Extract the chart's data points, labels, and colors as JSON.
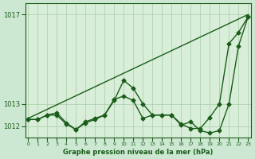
{
  "bg_color": "#cde8d2",
  "plot_bg_color": "#d8eed8",
  "line_color": "#1a5c1a",
  "grid_color": "#a8cca8",
  "xlabel": "Graphe pression niveau de la mer (hPa)",
  "ylim": [
    1011.5,
    1017.5
  ],
  "xlim": [
    -0.3,
    23.3
  ],
  "yticks": [
    1012,
    1013,
    1017
  ],
  "xticks": [
    0,
    1,
    2,
    3,
    4,
    5,
    6,
    7,
    8,
    9,
    10,
    11,
    12,
    13,
    14,
    15,
    16,
    17,
    18,
    19,
    20,
    21,
    22,
    23
  ],
  "series1_x": [
    0,
    1,
    2,
    3,
    4,
    5,
    6,
    7,
    8,
    9,
    10,
    11,
    12,
    13,
    14,
    15,
    16,
    17,
    18,
    19,
    20,
    21,
    22,
    23
  ],
  "series1_y": [
    1012.3,
    1012.3,
    1012.5,
    1012.5,
    1012.1,
    1011.85,
    1012.15,
    1012.3,
    1012.5,
    1013.15,
    1014.05,
    1013.7,
    1013.0,
    1012.5,
    1012.5,
    1012.5,
    1012.1,
    1011.9,
    1011.9,
    1012.4,
    1013.0,
    1015.7,
    1016.2,
    1016.9
  ],
  "series2_x": [
    0,
    1,
    2,
    3,
    4,
    5,
    6,
    7,
    8,
    9,
    10,
    11,
    12,
    13,
    14,
    15,
    16,
    17,
    18,
    19,
    20,
    21,
    22,
    23
  ],
  "series2_y": [
    1012.3,
    1012.3,
    1012.5,
    1012.6,
    1012.15,
    1011.85,
    1012.2,
    1012.35,
    1012.5,
    1013.2,
    1013.35,
    1013.15,
    1012.35,
    1012.5,
    1012.5,
    1012.5,
    1012.05,
    1012.2,
    1011.8,
    1011.7,
    1011.8,
    1013.0,
    1015.6,
    1016.9
  ],
  "series3_x": [
    0,
    23
  ],
  "series3_y": [
    1012.35,
    1017.0
  ],
  "marker_size": 2.5,
  "linewidth": 1.0
}
